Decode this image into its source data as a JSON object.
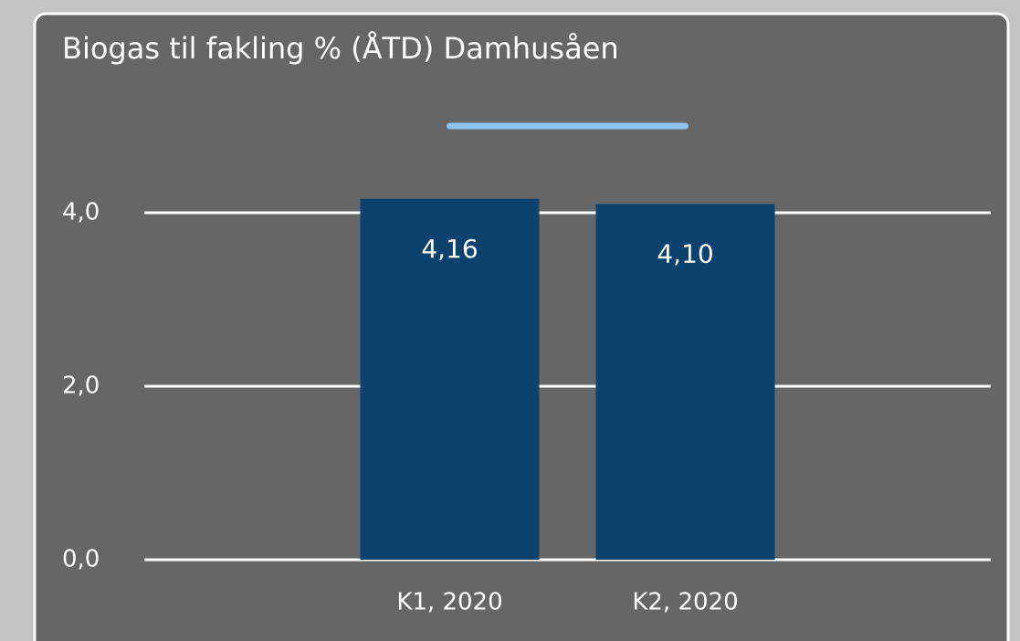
{
  "chart_data": {
    "type": "bar",
    "title": "Biogas til fakling % (ÅTD) Damhusåen",
    "categories": [
      "K1, 2020",
      "K2, 2020"
    ],
    "values": [
      4.16,
      4.1
    ],
    "value_labels": [
      "4,16",
      "4,10"
    ],
    "color": "#0b426e",
    "series": [
      {
        "color": "#8fc3ef",
        "values": [
          5,
          5
        ]
      }
    ],
    "ylim": [
      0,
      5.5
    ],
    "yticks": [
      {
        "value": 0,
        "label": "0,0"
      },
      {
        "value": 2,
        "label": "2,0"
      },
      {
        "value": 4,
        "label": "4,0"
      }
    ],
    "grid": true
  }
}
